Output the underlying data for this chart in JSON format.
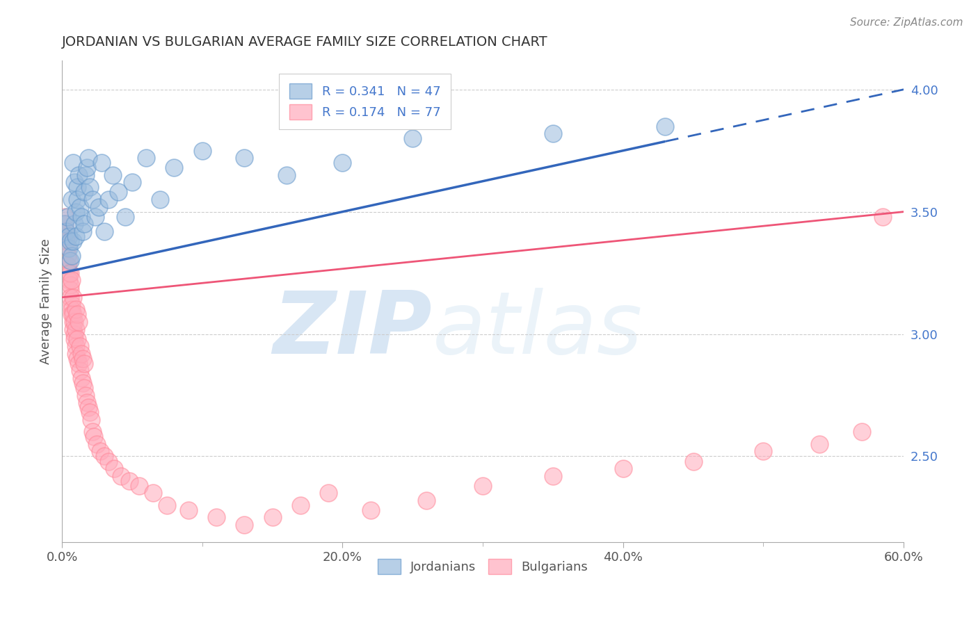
{
  "title": "JORDANIAN VS BULGARIAN AVERAGE FAMILY SIZE CORRELATION CHART",
  "source_text": "Source: ZipAtlas.com",
  "ylabel": "Average Family Size",
  "xlim": [
    0.0,
    0.6
  ],
  "ylim": [
    2.15,
    4.12
  ],
  "xtick_major": [
    0.0,
    0.2,
    0.4,
    0.6
  ],
  "xtick_labels": [
    "0.0%",
    "20.0%",
    "40.0%",
    "60.0%"
  ],
  "ytick_positions": [
    2.5,
    3.0,
    3.5,
    4.0
  ],
  "ytick_labels": [
    "2.50",
    "3.00",
    "3.50",
    "4.00"
  ],
  "jordanian_color_face": "#99BBDD",
  "jordanian_color_edge": "#6699CC",
  "bulgarian_color_face": "#FFAABB",
  "bulgarian_color_edge": "#FF8899",
  "jordanian_R": 0.341,
  "jordanian_N": 47,
  "bulgarian_R": 0.174,
  "bulgarian_N": 77,
  "jordanian_line_color": "#3366BB",
  "bulgarian_line_color": "#EE5577",
  "watermark_zip": "ZIP",
  "watermark_atlas": "atlas",
  "watermark_color": "#C8DCF0",
  "jordanian_x": [
    0.002,
    0.003,
    0.004,
    0.005,
    0.005,
    0.006,
    0.006,
    0.007,
    0.007,
    0.008,
    0.008,
    0.009,
    0.009,
    0.01,
    0.01,
    0.011,
    0.011,
    0.012,
    0.013,
    0.014,
    0.015,
    0.016,
    0.016,
    0.017,
    0.018,
    0.019,
    0.02,
    0.022,
    0.024,
    0.026,
    0.028,
    0.03,
    0.033,
    0.036,
    0.04,
    0.045,
    0.05,
    0.06,
    0.07,
    0.08,
    0.1,
    0.13,
    0.16,
    0.2,
    0.25,
    0.35,
    0.43
  ],
  "jordanian_y": [
    3.45,
    3.42,
    3.48,
    3.4,
    3.35,
    3.38,
    3.3,
    3.32,
    3.55,
    3.38,
    3.7,
    3.62,
    3.45,
    3.5,
    3.4,
    3.6,
    3.55,
    3.65,
    3.52,
    3.48,
    3.42,
    3.58,
    3.45,
    3.65,
    3.68,
    3.72,
    3.6,
    3.55,
    3.48,
    3.52,
    3.7,
    3.42,
    3.55,
    3.65,
    3.58,
    3.48,
    3.62,
    3.72,
    3.55,
    3.68,
    3.75,
    3.72,
    3.65,
    3.7,
    3.8,
    3.82,
    3.85
  ],
  "bulgarian_x": [
    0.001,
    0.002,
    0.002,
    0.003,
    0.003,
    0.003,
    0.004,
    0.004,
    0.004,
    0.005,
    0.005,
    0.005,
    0.006,
    0.006,
    0.006,
    0.006,
    0.007,
    0.007,
    0.007,
    0.007,
    0.008,
    0.008,
    0.008,
    0.008,
    0.009,
    0.009,
    0.009,
    0.01,
    0.01,
    0.01,
    0.01,
    0.011,
    0.011,
    0.011,
    0.012,
    0.012,
    0.013,
    0.013,
    0.014,
    0.014,
    0.015,
    0.015,
    0.016,
    0.016,
    0.017,
    0.018,
    0.019,
    0.02,
    0.021,
    0.022,
    0.023,
    0.025,
    0.027,
    0.03,
    0.033,
    0.037,
    0.042,
    0.048,
    0.055,
    0.065,
    0.075,
    0.09,
    0.11,
    0.13,
    0.15,
    0.17,
    0.19,
    0.22,
    0.26,
    0.3,
    0.35,
    0.4,
    0.45,
    0.5,
    0.54,
    0.57,
    0.585
  ],
  "bulgarian_y": [
    3.42,
    3.45,
    3.48,
    3.4,
    3.42,
    3.38,
    3.35,
    3.32,
    3.28,
    3.3,
    3.25,
    3.22,
    3.18,
    3.2,
    3.15,
    3.25,
    3.12,
    3.1,
    3.08,
    3.22,
    3.05,
    3.02,
    3.08,
    3.15,
    3.0,
    2.98,
    3.05,
    2.95,
    3.02,
    2.92,
    3.1,
    2.9,
    2.98,
    3.08,
    2.88,
    3.05,
    2.85,
    2.95,
    2.82,
    2.92,
    2.8,
    2.9,
    2.78,
    2.88,
    2.75,
    2.72,
    2.7,
    2.68,
    2.65,
    2.6,
    2.58,
    2.55,
    2.52,
    2.5,
    2.48,
    2.45,
    2.42,
    2.4,
    2.38,
    2.35,
    2.3,
    2.28,
    2.25,
    2.22,
    2.25,
    2.3,
    2.35,
    2.28,
    2.32,
    2.38,
    2.42,
    2.45,
    2.48,
    2.52,
    2.55,
    2.6,
    3.48
  ],
  "jord_line_x0": 0.0,
  "jord_line_x_solid_end": 0.43,
  "jord_line_x1": 0.6,
  "jord_line_y0": 3.25,
  "jord_line_y1": 4.0,
  "bulg_line_x0": 0.0,
  "bulg_line_x1": 0.6,
  "bulg_line_y0": 3.15,
  "bulg_line_y1": 3.5
}
